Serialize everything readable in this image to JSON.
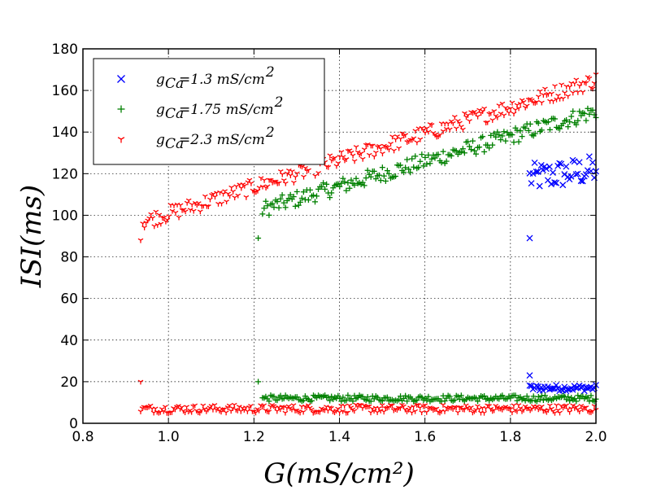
{
  "chart_data": {
    "type": "scatter",
    "xlabel": "G(mS/cm²)",
    "ylabel": "ISI(ms)",
    "xlim": [
      0.8,
      2.0
    ],
    "ylim": [
      0,
      180
    ],
    "xticks": [
      "0.8",
      "1.0",
      "1.2",
      "1.4",
      "1.6",
      "1.8",
      "2.0"
    ],
    "yticks": [
      "0",
      "20",
      "40",
      "60",
      "80",
      "100",
      "120",
      "140",
      "160",
      "180"
    ],
    "grid": true,
    "legend_position": "top-left",
    "series": [
      {
        "name": "gCa=1.3 mS/cm²",
        "legend_label": "=1.3 mS/cm",
        "legend_sub": "Ca",
        "legend_sup": "2",
        "marker": "x",
        "color": "#0000ff",
        "segments": [
          {
            "x_start": 1.845,
            "x_end": 2.0,
            "y_start": 118,
            "y_end": 122,
            "spread": 14
          },
          {
            "x_start": 1.845,
            "x_end": 2.0,
            "y_start": 17,
            "y_end": 17,
            "spread": 3
          }
        ],
        "points": [
          {
            "x": 1.845,
            "y": 89
          },
          {
            "x": 1.845,
            "y": 23
          }
        ]
      },
      {
        "name": "gCa=1.75 mS/cm²",
        "legend_label": "=1.75 mS/cm",
        "legend_sub": "Ca",
        "legend_sup": "2",
        "marker": "+",
        "color": "#008000",
        "segments": [
          {
            "x_start": 1.22,
            "x_end": 2.0,
            "y_start": 103,
            "y_end": 150,
            "spread": 8
          },
          {
            "x_start": 1.22,
            "x_end": 2.0,
            "y_start": 12,
            "y_end": 12,
            "spread": 3
          }
        ],
        "points": [
          {
            "x": 1.21,
            "y": 89
          },
          {
            "x": 1.21,
            "y": 20
          }
        ]
      },
      {
        "name": "gCa=2.3 mS/cm²",
        "legend_label": "=2.3 mS/cm",
        "legend_sub": "Ca",
        "legend_sup": "2",
        "marker": "tri_down",
        "color": "#ff0000",
        "segments": [
          {
            "x_start": 0.94,
            "x_end": 2.0,
            "y_start": 97,
            "y_end": 165,
            "spread": 8
          },
          {
            "x_start": 0.935,
            "x_end": 2.0,
            "y_start": 7,
            "y_end": 7,
            "spread": 4
          }
        ],
        "points": [
          {
            "x": 0.935,
            "y": 88
          },
          {
            "x": 0.935,
            "y": 20
          }
        ]
      }
    ]
  }
}
